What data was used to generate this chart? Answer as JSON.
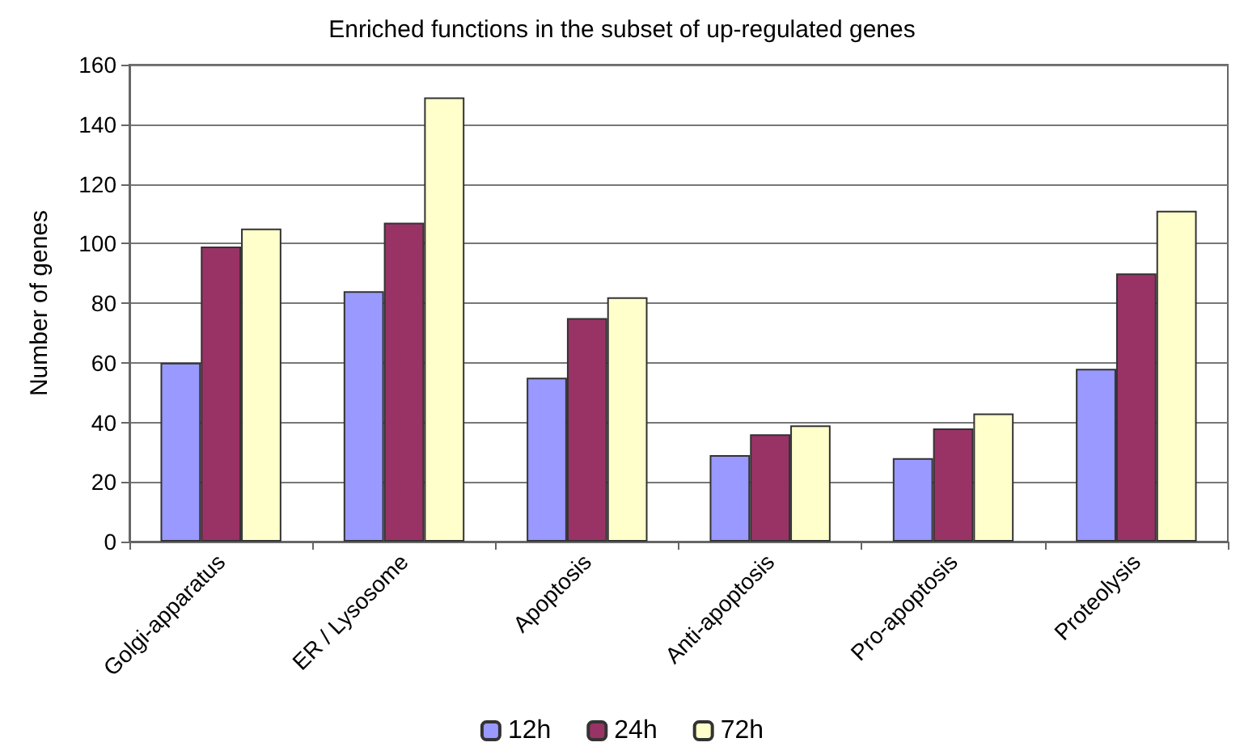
{
  "chart_data": {
    "type": "bar",
    "title": "Enriched functions in the subset of up-regulated genes",
    "ylabel": "Number of genes",
    "categories": [
      "Golgi-apparatus",
      "ER / Lysosome",
      "Apoptosis",
      "Anti-apoptosis",
      "Pro-apoptosis",
      "Proteolysis"
    ],
    "series": [
      {
        "name": "12h",
        "color": "#9999ff",
        "values": [
          60,
          84,
          55,
          29,
          28,
          58
        ]
      },
      {
        "name": "24h",
        "color": "#993366",
        "values": [
          99,
          107,
          75,
          36,
          38,
          90
        ]
      },
      {
        "name": "72h",
        "color": "#ffffcc",
        "values": [
          105,
          149,
          82,
          39,
          43,
          111
        ]
      }
    ],
    "ylim": [
      0,
      160
    ],
    "yticks": [
      0,
      20,
      40,
      60,
      80,
      100,
      120,
      140,
      160
    ],
    "grid": "y",
    "legend": "bottom"
  }
}
